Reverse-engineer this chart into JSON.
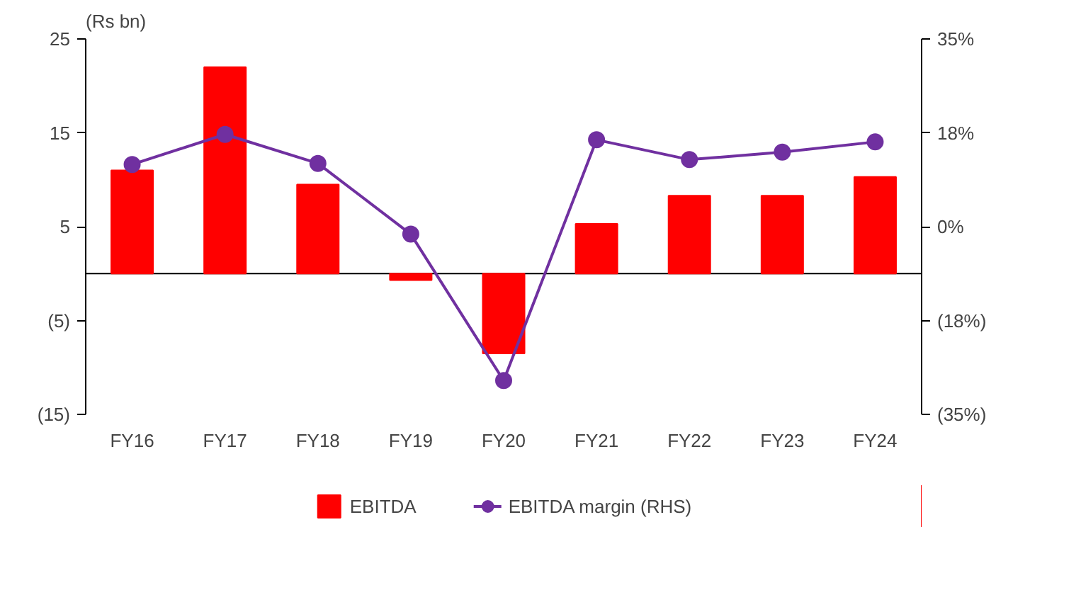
{
  "chart_data": {
    "type": "bar",
    "ylabel": "(Rs bn)",
    "categories": [
      "FY16",
      "FY17",
      "FY18",
      "FY19",
      "FY20",
      "FY21",
      "FY22",
      "FY23",
      "FY24"
    ],
    "series": [
      {
        "name": "EBITDA",
        "color": "#ff0000",
        "values": [
          11.0,
          22.0,
          9.5,
          -0.7,
          -8.5,
          5.3,
          8.3,
          8.3,
          10.3
        ]
      },
      {
        "name": "EBITDA margin (RHS)",
        "type": "line",
        "axis": "y2",
        "color": "#7030a0",
        "marker": "circle",
        "values": [
          11.6,
          17.2,
          11.8,
          -1.4,
          -28.7,
          16.2,
          12.5,
          13.9,
          15.8
        ]
      }
    ],
    "ylim": [
      -15,
      25
    ],
    "yticks": [
      {
        "value": 25,
        "label": "25"
      },
      {
        "value": 15,
        "label": "15"
      },
      {
        "value": 5,
        "label": "5"
      },
      {
        "value": -5,
        "label": "(5)"
      },
      {
        "value": -15,
        "label": "(15)"
      }
    ],
    "y2lim": [
      -35,
      35
    ],
    "y2ticks": [
      {
        "value": 35,
        "label": "35%"
      },
      {
        "value": 17.5,
        "label": "18%"
      },
      {
        "value": 0,
        "label": "0%"
      },
      {
        "value": -17.5,
        "label": "(18%)"
      },
      {
        "value": -35,
        "label": "(35%)"
      }
    ],
    "ref_lines": [
      {
        "axis": "y",
        "value": 0,
        "color": "#000000"
      }
    ],
    "grid": false,
    "legend": "bottom"
  }
}
